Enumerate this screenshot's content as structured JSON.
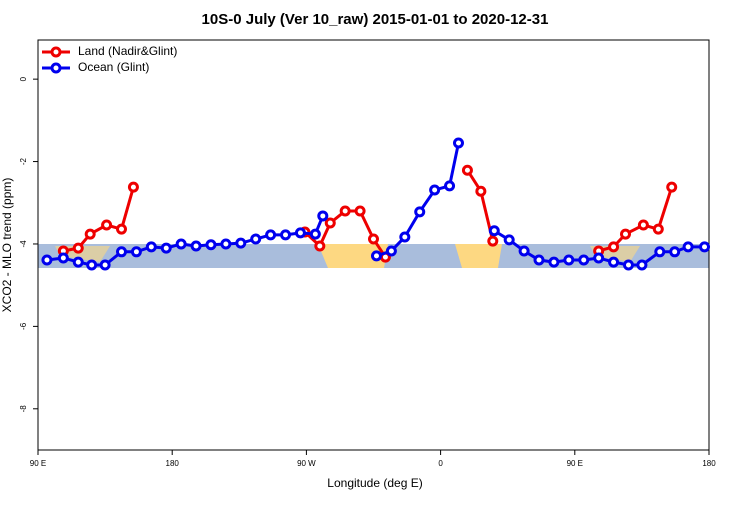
{
  "chart_data": {
    "type": "line",
    "title": "10S-0 July (Ver 10_raw)   2015-01-01 to 2020-12-31",
    "x_label": "Longitude (deg E)",
    "y_label": "XCO2 - MLO trend (ppm)",
    "xlim": [
      90,
      540
    ],
    "xticks": [
      {
        "value": 90,
        "label": "90 E"
      },
      180,
      {
        "value": 270,
        "label": "90 W"
      },
      {
        "value": 360,
        "label": "0"
      },
      {
        "value": 450,
        "label": "90 E"
      },
      {
        "value": 540,
        "label": "180"
      }
    ],
    "ylim": [
      -9,
      0.95
    ],
    "yticks": [
      0,
      -2,
      -4,
      -6,
      -8
    ],
    "legend": "top-left",
    "series": [
      {
        "name": "Land (Nadir&Glint)",
        "color": "#ee0000",
        "x": [
          107,
          117,
          125,
          136,
          146,
          154,
          null,
          269,
          279,
          286,
          296,
          306,
          315,
          323,
          null,
          378,
          387,
          395,
          null,
          466,
          476,
          484,
          496,
          506,
          515
        ],
        "values": [
          -4.17,
          -4.1,
          -3.76,
          -3.54,
          -3.64,
          -2.62,
          null,
          -3.71,
          -4.05,
          -3.49,
          -3.2,
          -3.2,
          -3.88,
          -4.32,
          null,
          -2.21,
          -2.72,
          -3.93,
          null,
          -4.17,
          -4.07,
          -3.76,
          -3.54,
          -3.64,
          -2.62
        ]
      },
      {
        "name": "Ocean (Glint)",
        "color": "#0000ee",
        "x": [
          96,
          107,
          117,
          126,
          135,
          146,
          156,
          166,
          176,
          186,
          196,
          206,
          216,
          226,
          236,
          246,
          256,
          266,
          276,
          281,
          null,
          317,
          327,
          336,
          346,
          356,
          366,
          372,
          null,
          396,
          406,
          416,
          426,
          436,
          446,
          456,
          466,
          476,
          486,
          495,
          507,
          517,
          526,
          537
        ],
        "values": [
          -4.39,
          -4.34,
          -4.44,
          -4.51,
          -4.51,
          -4.19,
          -4.19,
          -4.07,
          -4.1,
          -4.0,
          -4.05,
          -4.02,
          -4.0,
          -3.98,
          -3.88,
          -3.78,
          -3.78,
          -3.73,
          -3.76,
          -3.32,
          null,
          -4.29,
          -4.17,
          -3.83,
          -3.22,
          -2.69,
          -2.59,
          -1.55,
          null,
          -3.68,
          -3.9,
          -4.17,
          -4.39,
          -4.44,
          -4.39,
          -4.39,
          -4.34,
          -4.44,
          -4.51,
          -4.51,
          -4.19,
          -4.19,
          -4.07,
          -4.07
        ]
      }
    ]
  }
}
